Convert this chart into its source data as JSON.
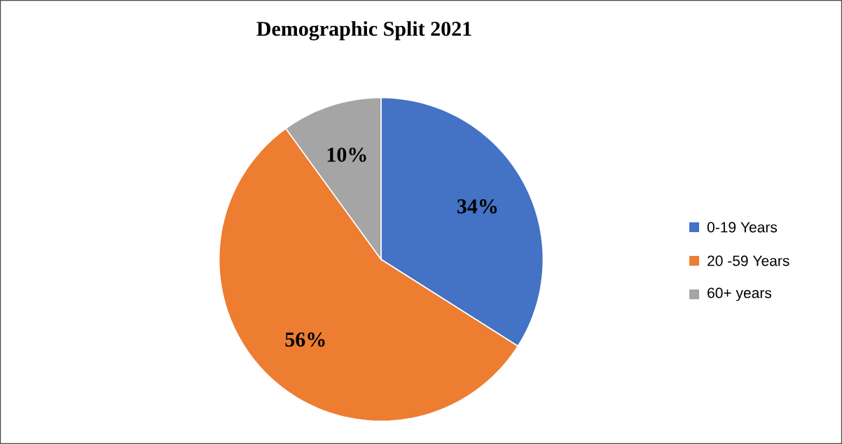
{
  "chart_data": {
    "type": "pie",
    "title": "Demographic Split 2021",
    "categories": [
      "0-19 Years",
      "20 -59 Years",
      "60+ years"
    ],
    "values": [
      34,
      56,
      10
    ],
    "colors": [
      "#4472c4",
      "#ed7d31",
      "#a5a5a5"
    ],
    "value_labels": [
      "34%",
      "56%",
      "10%"
    ],
    "legend": "right"
  }
}
